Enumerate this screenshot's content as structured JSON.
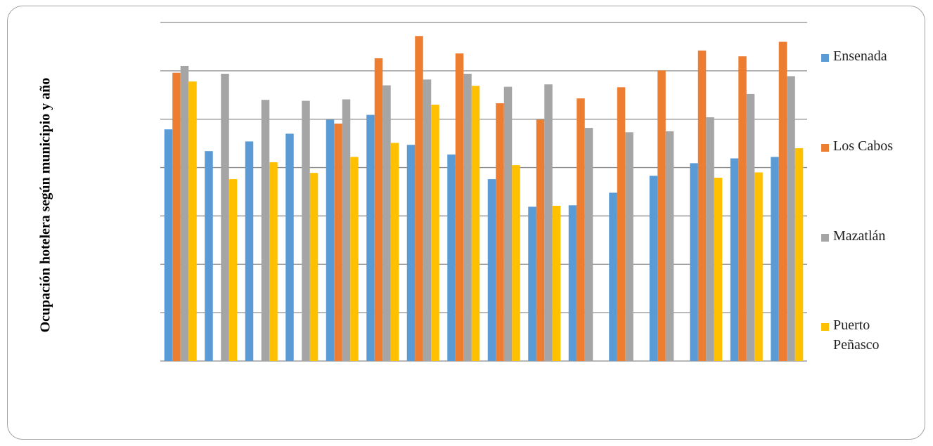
{
  "chart_data": {
    "type": "bar",
    "y_label": "Ocupación hotelera según municipio y año",
    "categories": [
      null,
      null,
      null,
      null,
      null,
      null,
      null,
      null,
      null,
      null,
      null,
      null,
      null,
      null,
      null,
      null
    ],
    "series": [
      {
        "name": "Ensenada",
        "color": "#5b9bd5",
        "values": [
          4.79,
          4.34,
          4.54,
          4.7,
          4.99,
          5.09,
          4.47,
          4.27,
          3.76,
          3.19,
          3.22,
          3.48,
          3.83,
          4.09,
          4.19,
          4.22
        ]
      },
      {
        "name": "Los Cabos",
        "color": "#ed7d31",
        "values": [
          5.96,
          null,
          null,
          null,
          4.91,
          6.26,
          6.72,
          6.36,
          5.33,
          4.99,
          5.43,
          5.66,
          6.01,
          6.42,
          6.3,
          6.6
        ]
      },
      {
        "name": "Mazatlán",
        "color": "#a5a5a5",
        "values": [
          6.1,
          5.94,
          5.4,
          5.38,
          5.41,
          5.7,
          5.82,
          5.94,
          5.67,
          5.72,
          4.82,
          4.73,
          4.75,
          5.04,
          5.52,
          5.89
        ]
      },
      {
        "name": "Puerto Peñasco",
        "color": "#ffc000",
        "values": [
          5.78,
          3.76,
          4.11,
          3.89,
          4.22,
          4.51,
          5.3,
          5.69,
          4.05,
          3.21,
          null,
          null,
          null,
          3.79,
          3.9,
          4.4
        ]
      }
    ],
    "ylim": [
      0,
      7
    ],
    "yticks": [
      0,
      1,
      2,
      3,
      4,
      5,
      6,
      7
    ],
    "grid": true,
    "legend": "right"
  }
}
